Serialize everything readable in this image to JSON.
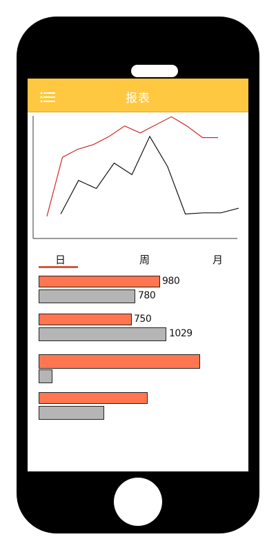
{
  "app": {
    "title": "报表",
    "menu_icon": "menu-icon",
    "header_color": "#ffc840"
  },
  "tabs": [
    {
      "label": "日",
      "active": true
    },
    {
      "label": "周",
      "active": false
    },
    {
      "label": "月",
      "active": false
    }
  ],
  "chart_data": [
    {
      "type": "line",
      "series": [
        {
          "color": "#cc2a2a",
          "values": [
            12,
            63,
            70,
            74,
            81,
            90,
            84,
            91,
            98,
            90,
            80,
            80
          ]
        },
        {
          "color": "#111111",
          "values": [
            14,
            43,
            36,
            58,
            48,
            81,
            55,
            14,
            15,
            15,
            19
          ]
        }
      ]
    },
    {
      "type": "bar",
      "colors": {
        "primary": "#ff7650",
        "secondary": "#b5b5b5"
      },
      "groups": [
        {
          "primary": 980,
          "secondary": 780,
          "primary_label": "980",
          "secondary_label": "780"
        },
        {
          "primary": 750,
          "secondary": 1029,
          "primary_label": "750",
          "secondary_label": "1029"
        },
        {
          "primary": 1300,
          "secondary": 110
        },
        {
          "primary": 880,
          "secondary": 530
        }
      ]
    }
  ]
}
